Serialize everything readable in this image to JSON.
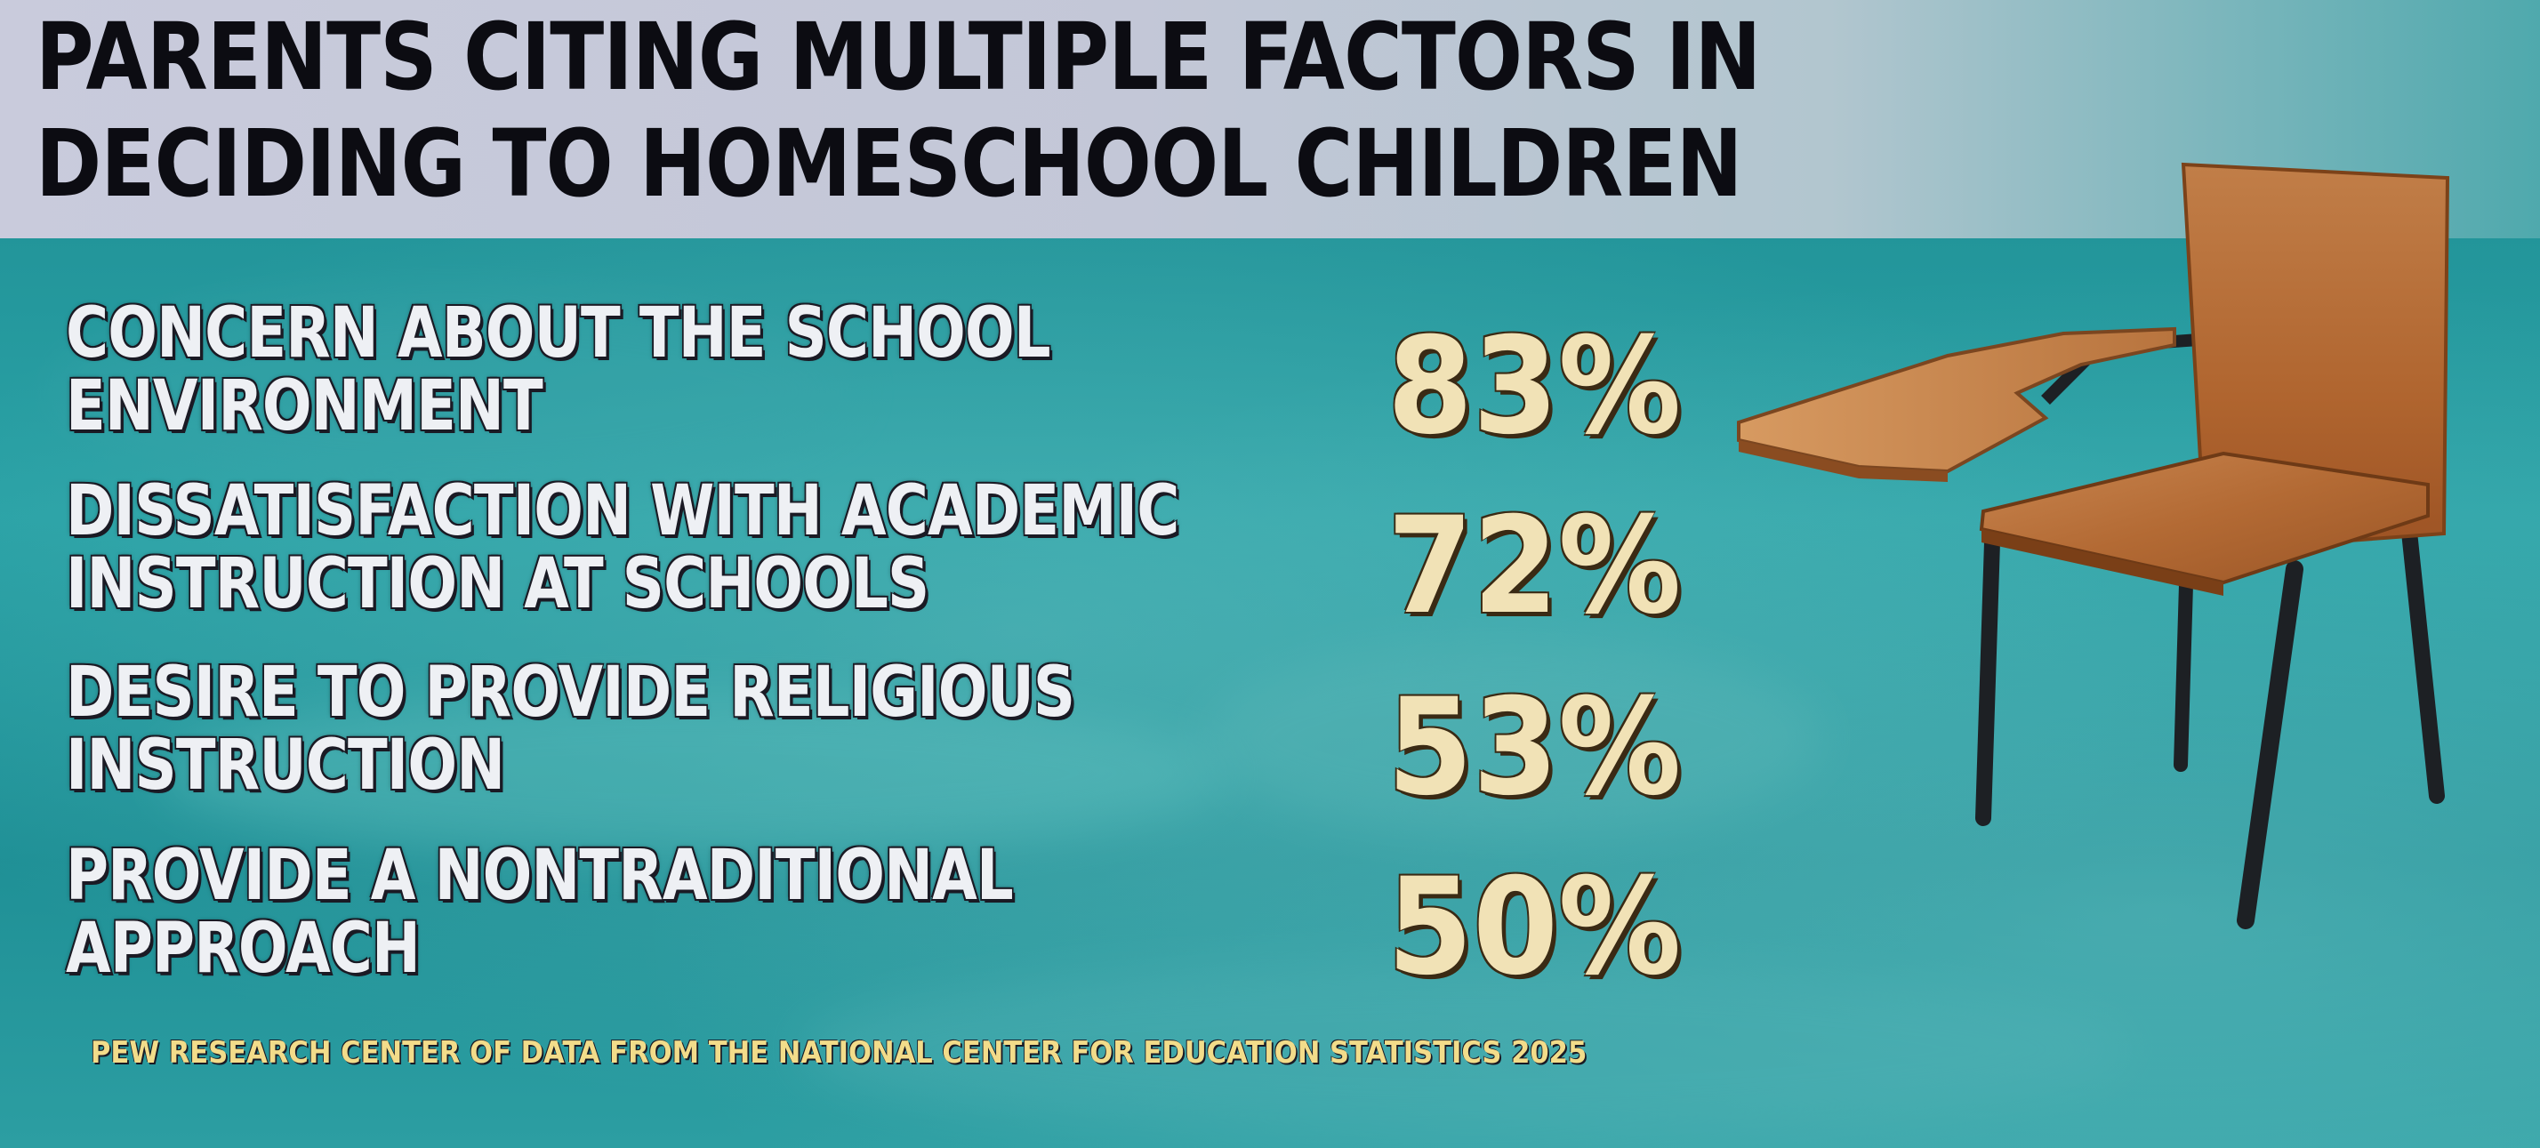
{
  "title": {
    "line1": "PARENTS CITING MULTIPLE FACTORS IN",
    "line2": "DECIDING TO HOMESCHOOL CHILDREN"
  },
  "factors": [
    {
      "line1": "CONCERN ABOUT THE SCHOOL",
      "line2": "ENVIRONMENT",
      "percent": "83%"
    },
    {
      "line1": "DISSATISFACTION WITH ACADEMIC",
      "line2": "INSTRUCTION AT SCHOOLS",
      "percent": "72%"
    },
    {
      "line1": "DESIRE TO PROVIDE RELIGIOUS",
      "line2": "INSTRUCTION",
      "percent": "53%"
    },
    {
      "line1": "PROVIDE A NONTRADITIONAL",
      "line2": "APPROACH",
      "percent": "50%"
    }
  ],
  "source": "PEW RESEARCH CENTER OF DATA FROM THE NATIONAL CENTER FOR EDUCATION STATISTICS 2025",
  "illustration": "school-desk-chair",
  "colors": {
    "background": "#1f8f94",
    "title_band": "#c9cbdc",
    "title_text": "#0c0c12",
    "label_text": "#eef0f4",
    "percent_text": "#f1e2b6",
    "source_text": "#f2dc8a"
  }
}
